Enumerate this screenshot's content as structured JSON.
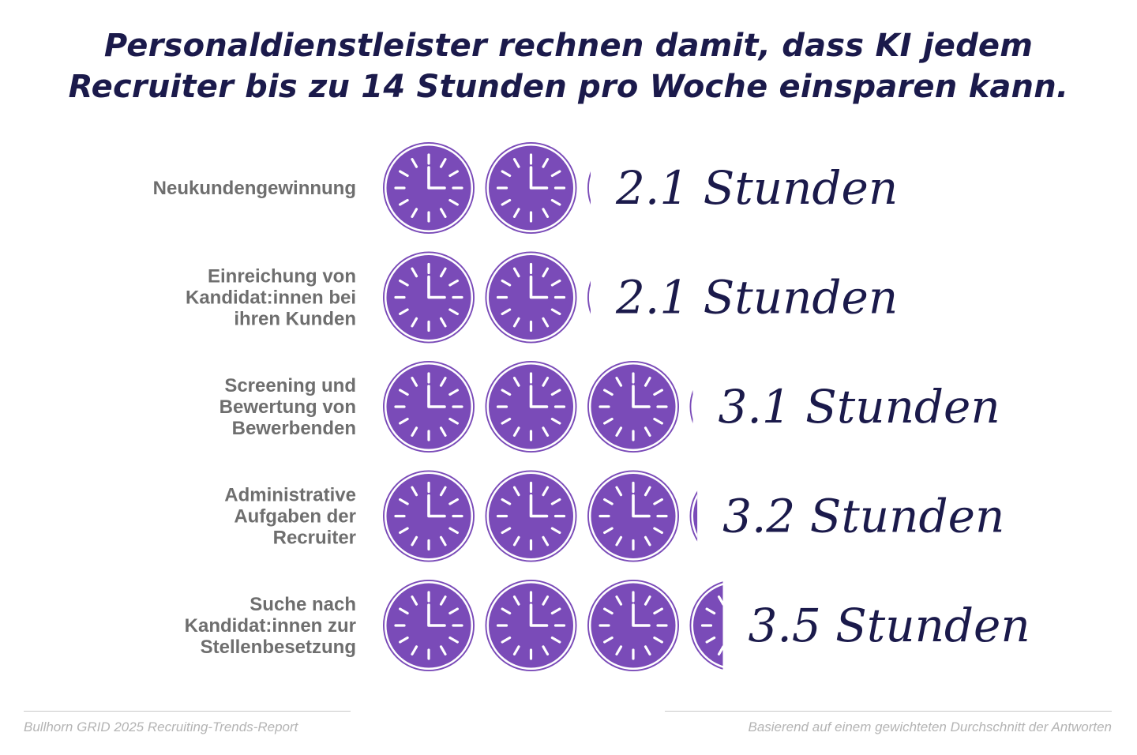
{
  "title_lines": [
    "Personaldienstleister rechnen damit, dass KI jedem",
    "Recruiter bis zu 14 Stunden pro Woche einsparen kann."
  ],
  "chart_data": {
    "type": "bar",
    "unit": "Stunden",
    "categories": [
      [
        "Neukundengewinnung"
      ],
      [
        "Einreichung von",
        "Kandidat:innen bei",
        "ihren Kunden"
      ],
      [
        "Screening und",
        "Bewertung von",
        "Bewerbenden"
      ],
      [
        "Administrative",
        "Aufgaben der",
        "Recruiter"
      ],
      [
        "Suche nach",
        "Kandidat:innen zur",
        "Stellenbesetzung"
      ]
    ],
    "values": [
      2.1,
      2.1,
      3.1,
      3.2,
      3.5
    ],
    "value_labels": [
      "2.1 Stunden",
      "2.1 Stunden",
      "3.1 Stunden",
      "3.2 Stunden",
      "3.5 Stunden"
    ],
    "icon": "clock-icon",
    "colors": {
      "icon_fill": "#7a4bb8",
      "icon_ring": "#7a4bb8",
      "value_text": "#1b1a4b",
      "label_text": "#6e6e6e"
    }
  },
  "footer": {
    "source": "Bullhorn GRID 2025 Recruiting-Trends-Report",
    "note": "Basierend auf einem gewichteten Durchschnitt der Antworten"
  }
}
